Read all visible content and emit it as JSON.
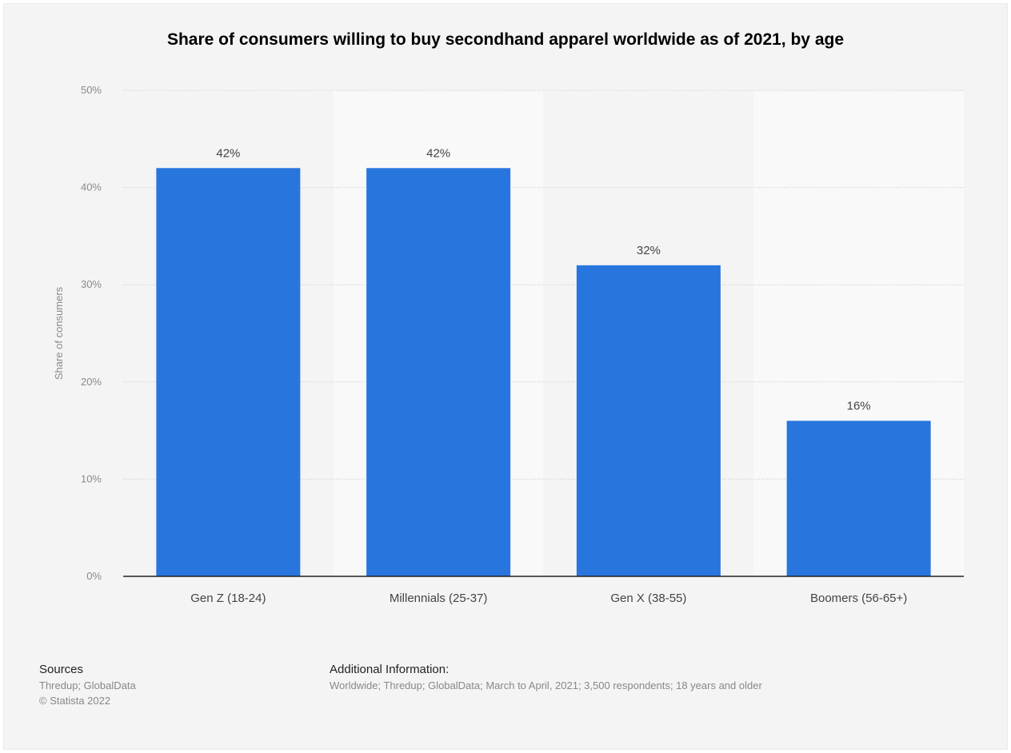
{
  "chart_data": {
    "type": "bar",
    "title": "Share of consumers willing to buy secondhand apparel worldwide as of 2021, by age",
    "xlabel": "",
    "ylabel": "Share of consumers",
    "categories": [
      "Gen Z (18-24)",
      "Millennials (25-37)",
      "Gen X (38-55)",
      "Boomers (56-65+)"
    ],
    "values": [
      42,
      42,
      32,
      16
    ],
    "value_labels": [
      "42%",
      "42%",
      "32%",
      "16%"
    ],
    "ylim": [
      0,
      50
    ],
    "yticks": [
      "0%",
      "10%",
      "20%",
      "30%",
      "40%",
      "50%"
    ],
    "grid": true,
    "bar_color": "#2876dd"
  },
  "footer": {
    "sources_heading": "Sources",
    "sources_text": "Thredup; GlobalData",
    "copyright": "© Statista 2022",
    "additional_heading": "Additional Information:",
    "additional_text": "Worldwide; Thredup; GlobalData; March to April, 2021; 3,500 respondents; 18 years and older"
  }
}
